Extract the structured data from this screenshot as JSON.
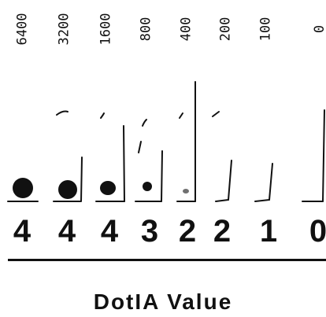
{
  "dilutions": [
    "6400",
    "3200",
    "1600",
    "800",
    "400",
    "200",
    "100",
    "0"
  ],
  "scores": [
    "4",
    "4",
    "4",
    "3",
    "2",
    "2",
    "1",
    "0"
  ],
  "title": "DotIA Value",
  "colors": {
    "ink": "#111111",
    "background": "#ffffff"
  }
}
